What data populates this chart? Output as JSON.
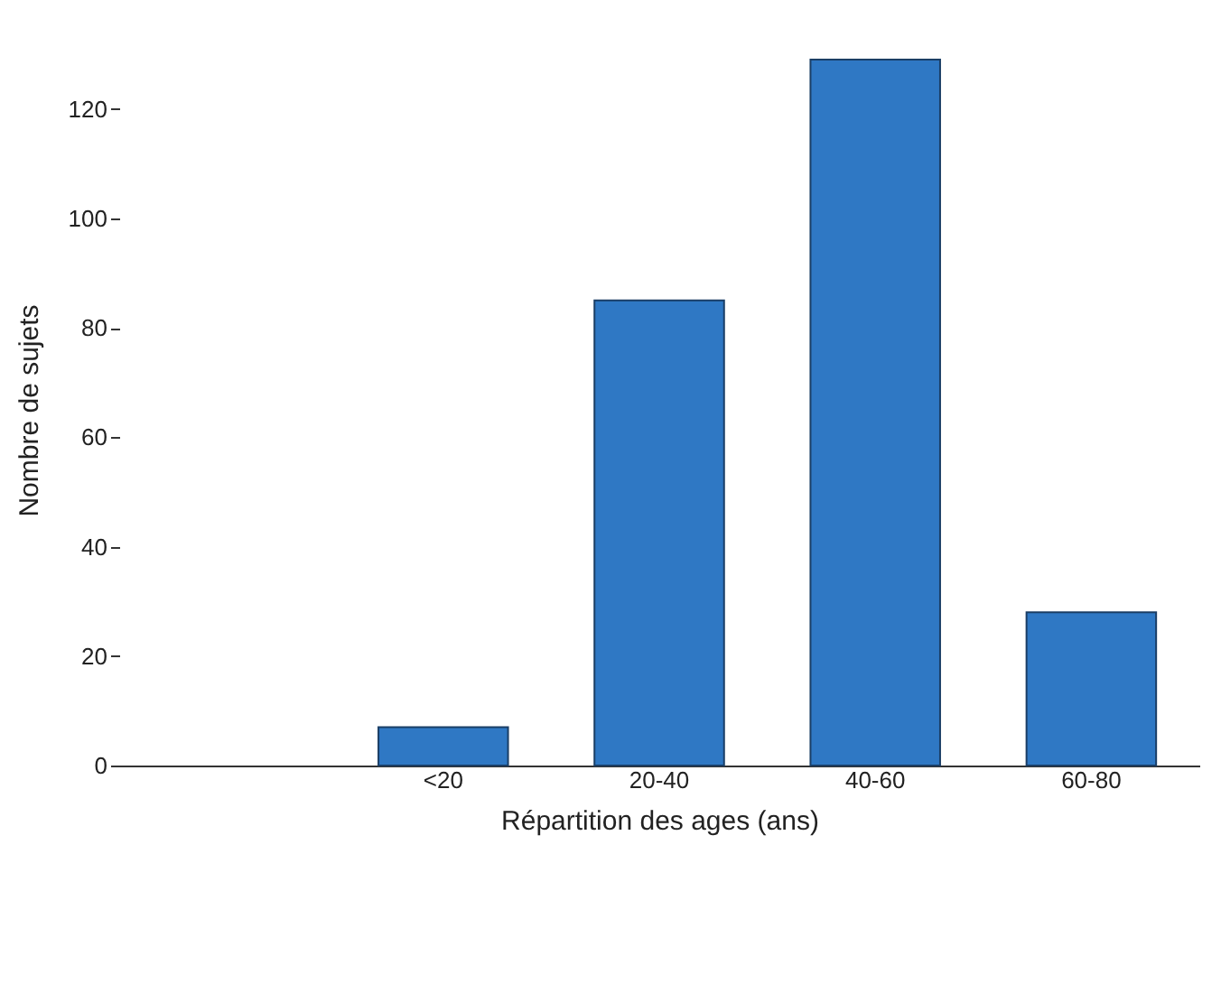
{
  "chart_data": {
    "type": "bar",
    "xlabel": "Répartition des ages (ans)",
    "ylabel": "Nombre de sujets",
    "categories": [
      null,
      "<20",
      "20-40",
      "40-60",
      "60-80"
    ],
    "values": [
      null,
      7,
      85,
      129,
      28
    ],
    "color": "#2f78c4",
    "ylim": [
      0,
      130
    ],
    "yticks": [
      0,
      20,
      40,
      60,
      80,
      100,
      120
    ],
    "grid": false
  }
}
